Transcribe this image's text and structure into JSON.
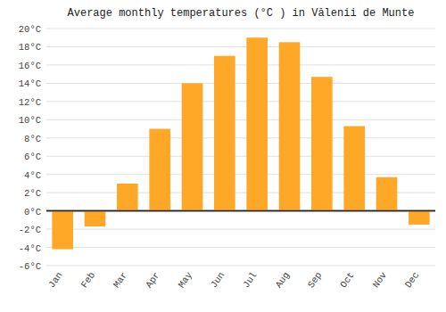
{
  "chart_data": {
    "type": "bar",
    "title": "Average monthly temperatures (°C ) in Vălenii de Munte",
    "categories": [
      "Jan",
      "Feb",
      "Mar",
      "Apr",
      "May",
      "Jun",
      "Jul",
      "Aug",
      "Sep",
      "Oct",
      "Nov",
      "Dec"
    ],
    "values": [
      -4.2,
      -1.7,
      3.0,
      9.0,
      14.0,
      17.0,
      19.0,
      18.5,
      14.7,
      9.3,
      3.7,
      -1.5
    ],
    "color": "#FFA726",
    "ylim": [
      -6,
      20
    ],
    "yticks": [
      {
        "value": -6,
        "label": "-6°C"
      },
      {
        "value": -4,
        "label": "-4°C"
      },
      {
        "value": -2,
        "label": "-2°C"
      },
      {
        "value": 0,
        "label": "0°C"
      },
      {
        "value": 2,
        "label": "2°C"
      },
      {
        "value": 4,
        "label": "4°C"
      },
      {
        "value": 6,
        "label": "6°C"
      },
      {
        "value": 8,
        "label": "8°C"
      },
      {
        "value": 10,
        "label": "10°C"
      },
      {
        "value": 12,
        "label": "12°C"
      },
      {
        "value": 14,
        "label": "14°C"
      },
      {
        "value": 16,
        "label": "16°C"
      },
      {
        "value": 18,
        "label": "18°C"
      },
      {
        "value": 20,
        "label": "20°C"
      }
    ],
    "grid": true
  }
}
